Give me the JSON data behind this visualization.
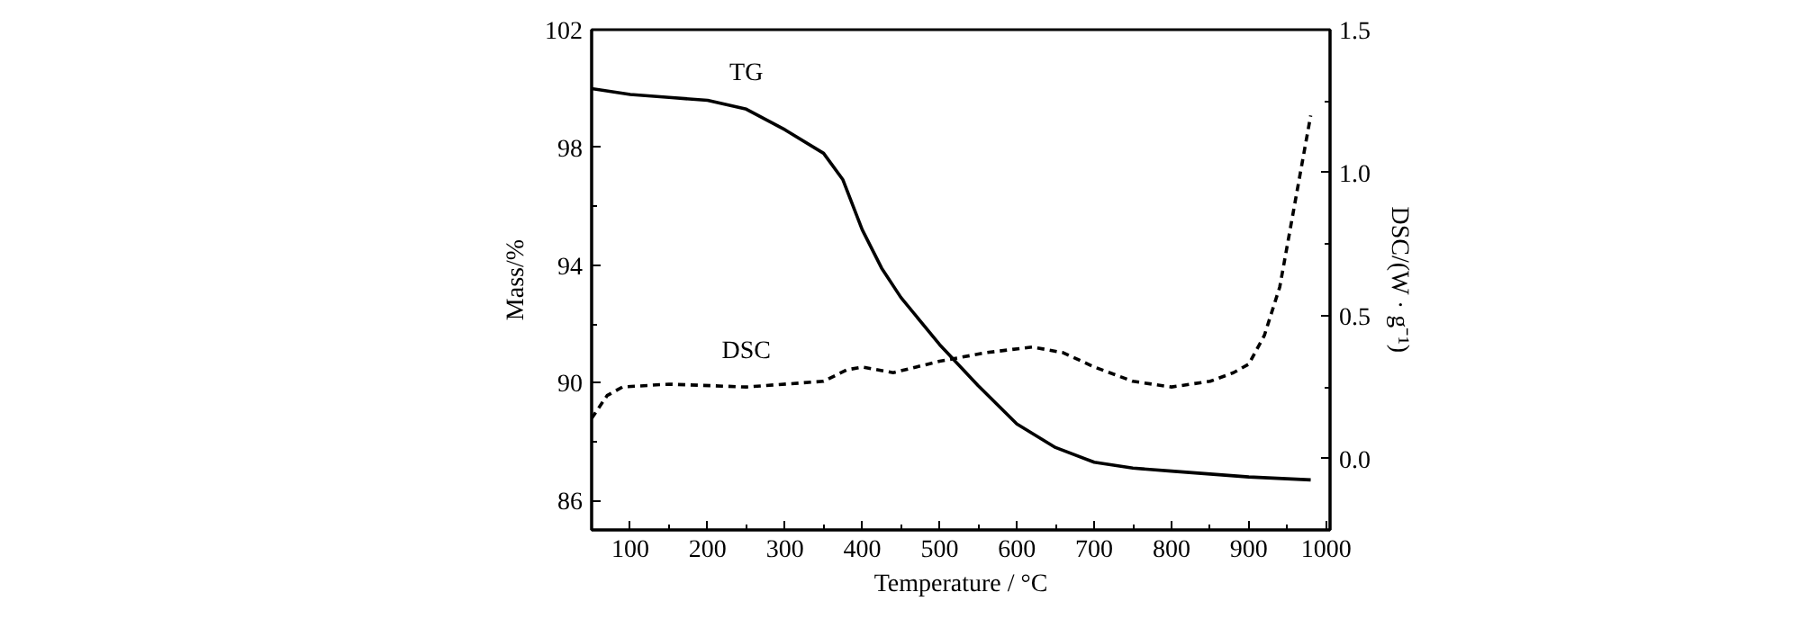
{
  "chart_data": {
    "type": "line",
    "xlabel": "Temperature / °C",
    "ylabel": "Mass/%",
    "y2label": "DSC/(W · g⁻¹)",
    "xlim": [
      50,
      1005
    ],
    "ylim": [
      85,
      102
    ],
    "y2lim": [
      -0.25,
      1.5
    ],
    "xticks": [
      100,
      {
        "value": 150,
        "label": null
      },
      200,
      {
        "value": 250,
        "label": null
      },
      300,
      {
        "value": 350,
        "label": null
      },
      400,
      {
        "value": 450,
        "label": null
      },
      500,
      {
        "value": 550,
        "label": null
      },
      600,
      {
        "value": 650,
        "label": null
      },
      700,
      {
        "value": 750,
        "label": null
      },
      800,
      {
        "value": 850,
        "label": null
      },
      900,
      {
        "value": 950,
        "label": null
      },
      1000
    ],
    "yticks": [
      86,
      {
        "value": 88,
        "label": null
      },
      90,
      {
        "value": 92,
        "label": null
      },
      94,
      {
        "value": 96,
        "label": null
      },
      98,
      {
        "value": 100,
        "label": null
      },
      102
    ],
    "y2ticks": [
      {
        "value": 0,
        "label": "0.0"
      },
      {
        "value": 0.25,
        "label": null
      },
      {
        "value": 0.5,
        "label": "0.5"
      },
      {
        "value": 0.75,
        "label": null
      },
      {
        "value": 1,
        "label": "1.0"
      },
      {
        "value": 1.25,
        "label": null
      },
      {
        "value": 1.5,
        "label": "1.5"
      }
    ],
    "grid": false,
    "series": [
      {
        "name": "TG",
        "color": "#000000",
        "line_style": "solid",
        "x": [
          50,
          100,
          150,
          200,
          250,
          300,
          350,
          375,
          400,
          425,
          450,
          500,
          550,
          600,
          650,
          700,
          750,
          800,
          900,
          980
        ],
        "values": [
          100.0,
          99.8,
          99.7,
          99.6,
          99.3,
          98.6,
          97.8,
          96.9,
          95.2,
          93.9,
          92.9,
          91.3,
          89.9,
          88.6,
          87.8,
          87.3,
          87.1,
          87.0,
          86.8,
          86.7
        ]
      },
      {
        "name": "DSC",
        "color": "#000000",
        "line_style": "dashed",
        "axis": "y2",
        "x": [
          50,
          70,
          90,
          150,
          250,
          350,
          380,
          400,
          440,
          500,
          560,
          620,
          660,
          700,
          750,
          800,
          850,
          880,
          900,
          920,
          940,
          960,
          980
        ],
        "values": [
          0.14,
          0.22,
          0.25,
          0.26,
          0.25,
          0.27,
          0.31,
          0.32,
          0.3,
          0.34,
          0.37,
          0.39,
          0.37,
          0.32,
          0.27,
          0.25,
          0.27,
          0.3,
          0.33,
          0.43,
          0.6,
          0.9,
          1.2
        ]
      }
    ]
  }
}
